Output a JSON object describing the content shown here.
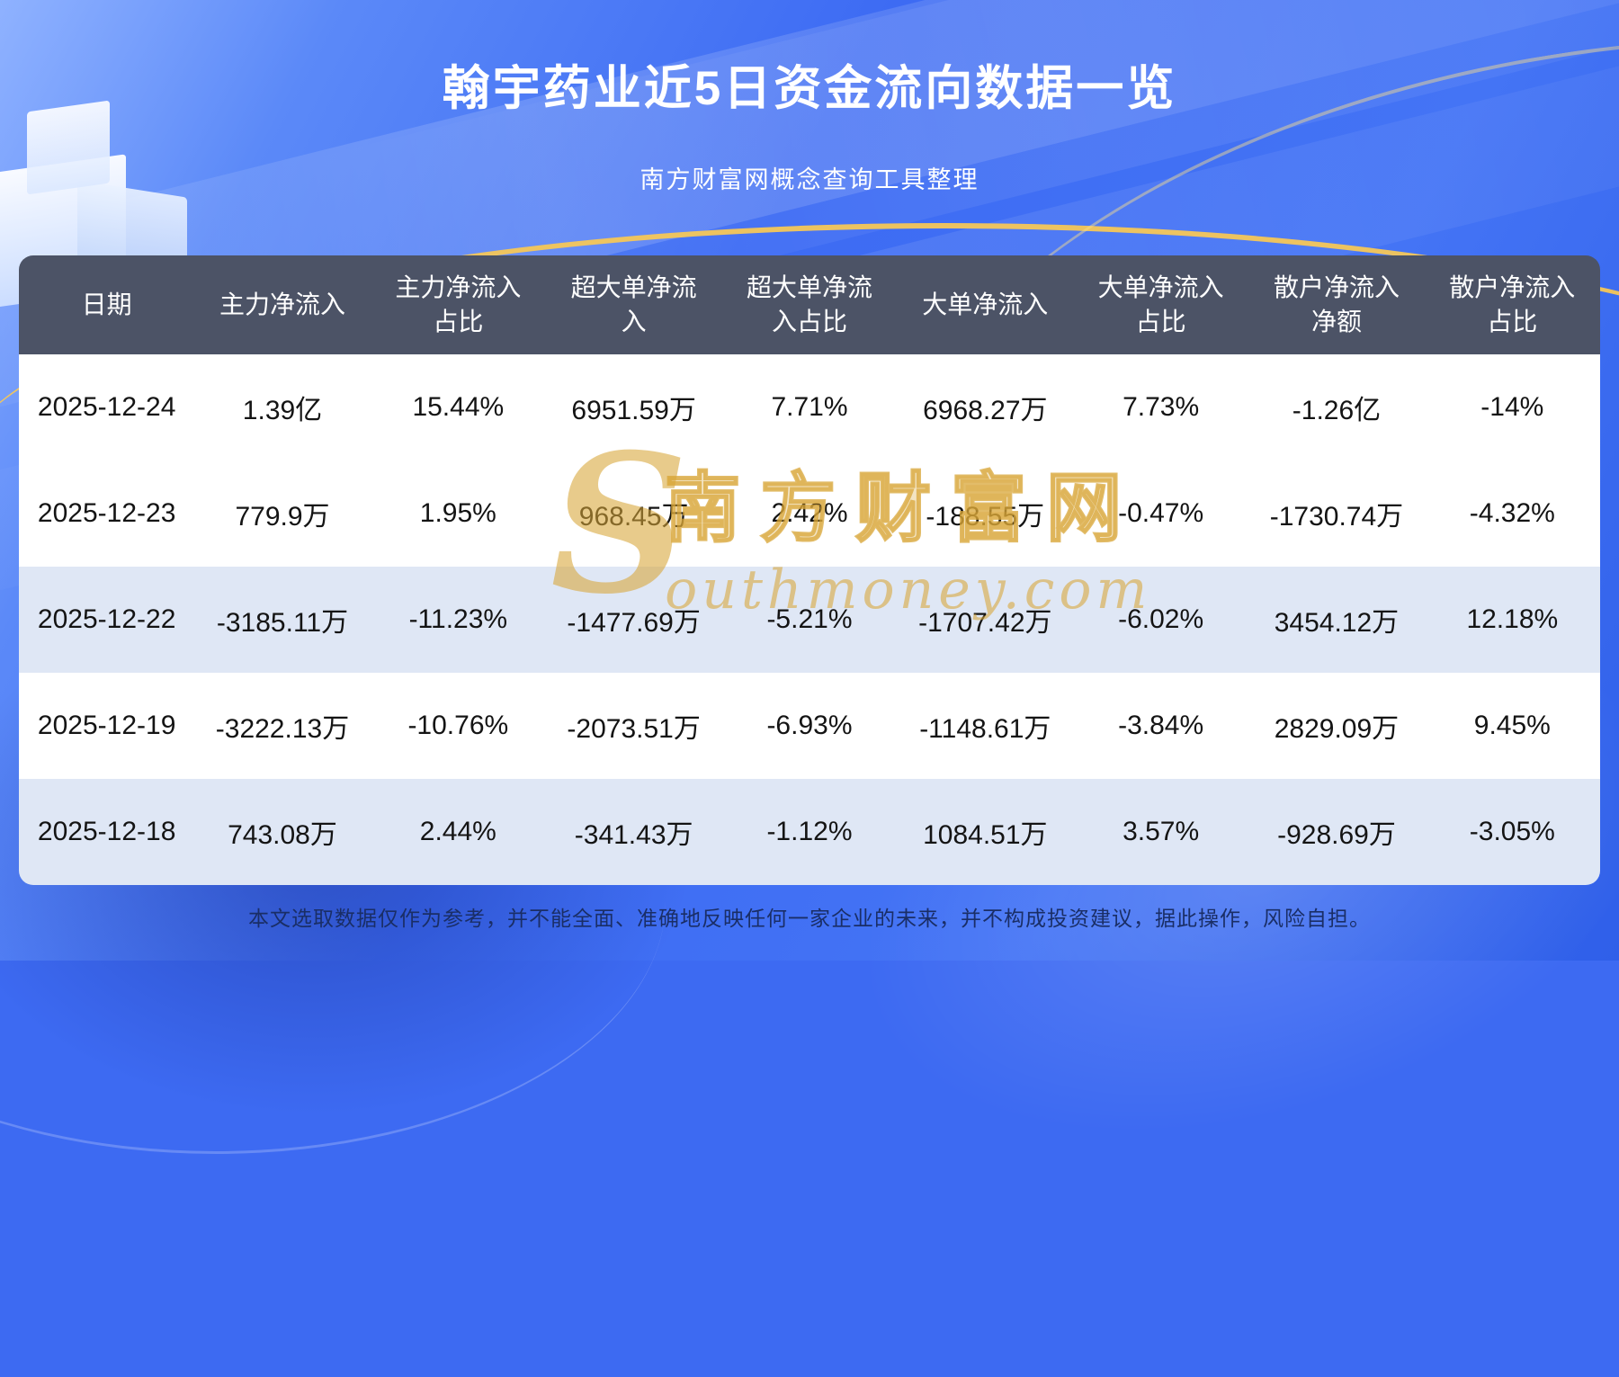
{
  "chart_data": {
    "type": "table",
    "title": "翰宇药业近5日资金流向数据一览",
    "subtitle": "南方财富网概念查询工具整理",
    "columns": [
      "日期",
      "主力净流入",
      "主力净流入占比",
      "超大单净流入",
      "超大单净流入占比",
      "大单净流入",
      "大单净流入占比",
      "散户净流入净额",
      "散户净流入占比"
    ],
    "column_display": [
      "日期",
      "主力净流入",
      "主力净流入\n占比",
      "超大单净流\n入",
      "超大单净流\n入占比",
      "大单净流入",
      "大单净流入\n占比",
      "散户净流入\n净额",
      "散户净流入\n占比"
    ],
    "rows": [
      [
        "2025-12-24",
        "1.39亿",
        "15.44%",
        "6951.59万",
        "7.71%",
        "6968.27万",
        "7.73%",
        "-1.26亿",
        "-14%"
      ],
      [
        "2025-12-23",
        "779.9万",
        "1.95%",
        "968.45万",
        "2.42%",
        "-188.55万",
        "-0.47%",
        "-1730.74万",
        "-4.32%"
      ],
      [
        "2025-12-22",
        "-3185.11万",
        "-11.23%",
        "-1477.69万",
        "-5.21%",
        "-1707.42万",
        "-6.02%",
        "3454.12万",
        "12.18%"
      ],
      [
        "2025-12-19",
        "-3222.13万",
        "-10.76%",
        "-2073.51万",
        "-6.93%",
        "-1148.61万",
        "-3.84%",
        "2829.09万",
        "9.45%"
      ],
      [
        "2025-12-18",
        "743.08万",
        "2.44%",
        "-341.43万",
        "-1.12%",
        "1084.51万",
        "3.57%",
        "-928.69万",
        "-3.05%"
      ]
    ]
  },
  "watermark": {
    "brand_initial": "S",
    "brand_cn": "南方财富网",
    "brand_en_rest": "outhmoney.com"
  },
  "footer": {
    "disclaimer": "本文选取数据仅作为参考，并不能全面、准确地反映任何一家企业的未来，并不构成投资建议，据此操作，风险自担。"
  },
  "colors": {
    "background_blue": "#3d6af2",
    "header_bg": "#4c5366",
    "row_bg": "#ffffff",
    "row_alt_bg": "#dfe7f5",
    "accent_gold": "#d8a637",
    "title_color": "#ffffff",
    "cell_text": "#141414",
    "disclaimer_text": "#1a2e66"
  }
}
